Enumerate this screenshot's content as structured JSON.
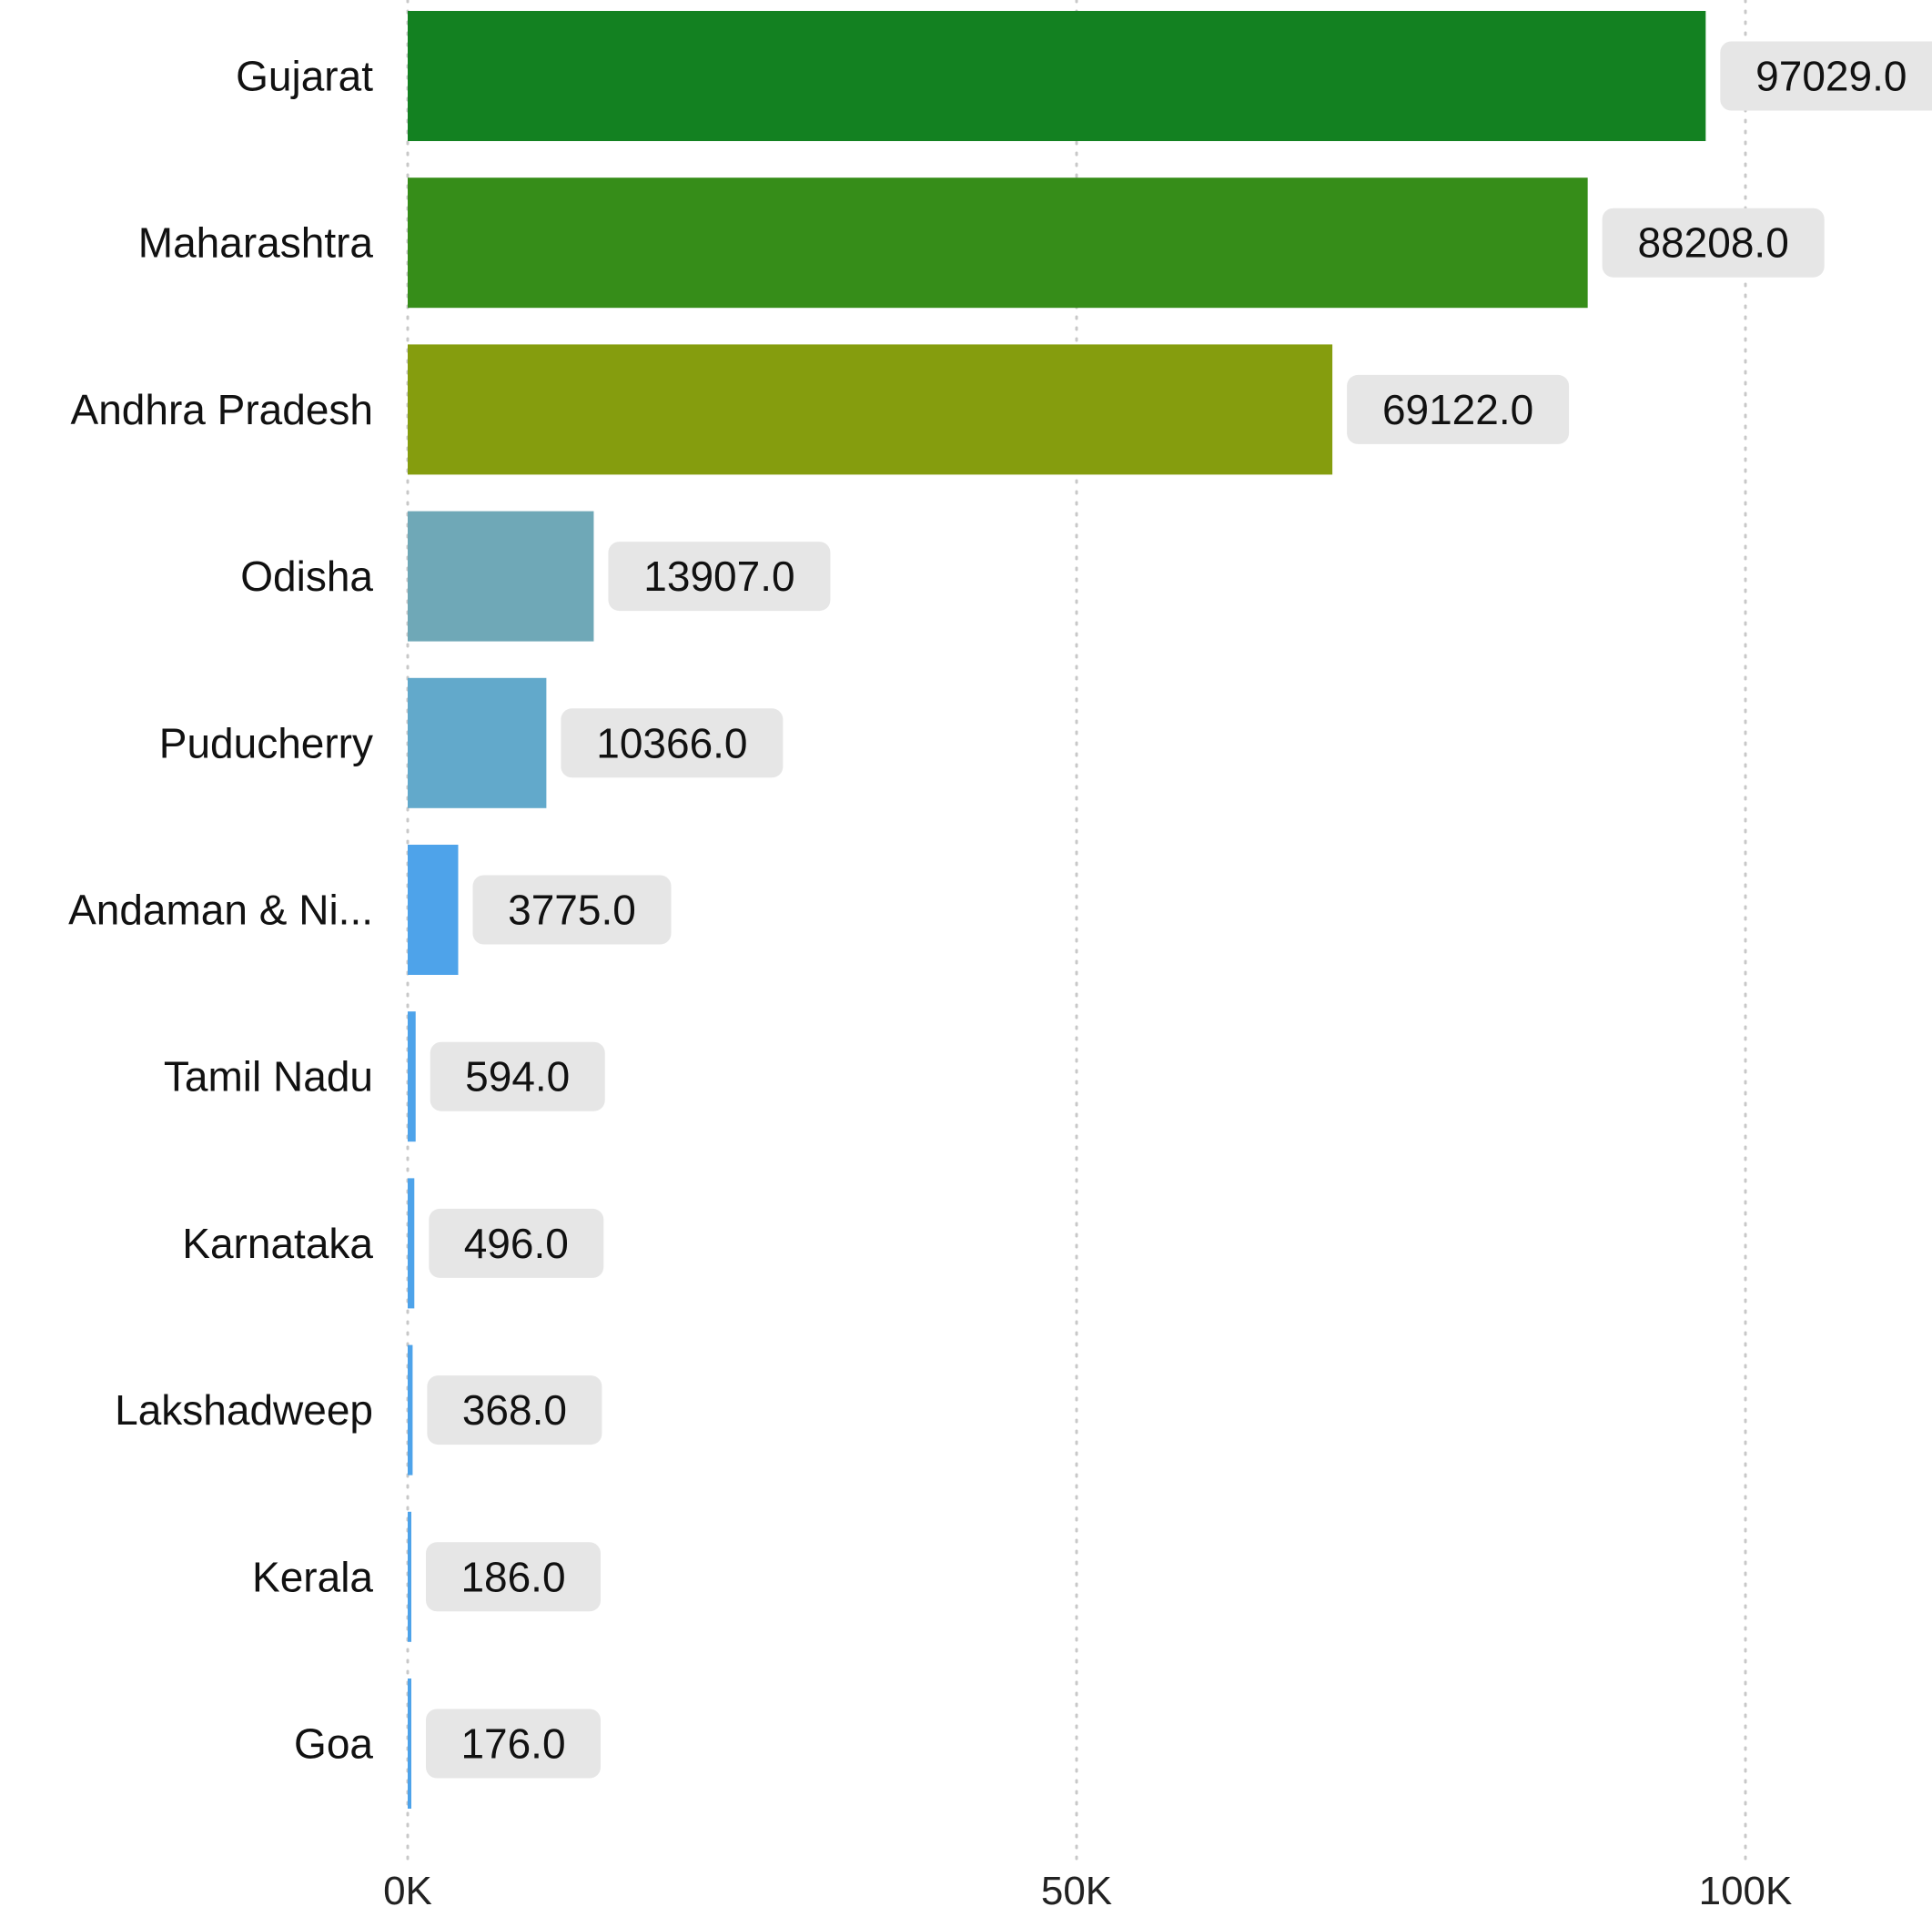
{
  "chart_data": {
    "type": "bar",
    "orientation": "horizontal",
    "categories": [
      "Gujarat",
      "Maharashtra",
      "Andhra Pradesh",
      "Odisha",
      "Puducherry",
      "Andaman & Ni...",
      "Tamil Nadu",
      "Karnataka",
      "Lakshadweep",
      "Kerala",
      "Goa"
    ],
    "values": [
      97029.0,
      88208.0,
      69122.0,
      13907.0,
      10366.0,
      3775.0,
      594.0,
      496.0,
      368.0,
      186.0,
      176.0
    ],
    "data_labels": [
      "97029.0",
      "88208.0",
      "69122.0",
      "13907.0",
      "10366.0",
      "3775.0",
      "594.0",
      "496.0",
      "368.0",
      "186.0",
      "176.0"
    ],
    "bar_colors": [
      "#138121",
      "#368D19",
      "#859D0E",
      "#6FA8B7",
      "#62A9CB",
      "#4EA3EA",
      "#4EA3EA",
      "#4EA3EA",
      "#4EA3EA",
      "#4EA3EA",
      "#4EA3EA"
    ],
    "x_ticks": [
      0,
      50000,
      100000
    ],
    "x_tick_labels": [
      "0K",
      "50K",
      "100K"
    ],
    "xlim": [
      0,
      100000
    ],
    "grid": "vertical dotted",
    "legend": "none",
    "label_badge_color": "#E6E6E6"
  }
}
